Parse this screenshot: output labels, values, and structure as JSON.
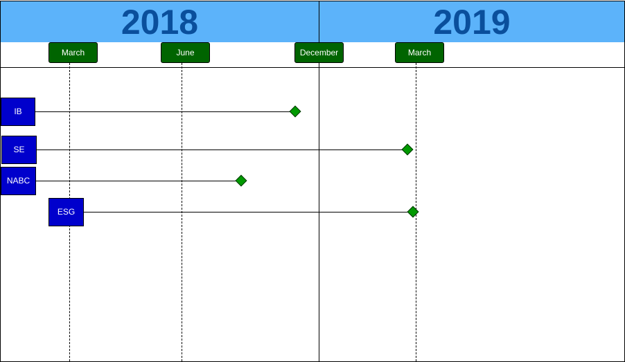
{
  "years": [
    {
      "label": "2018"
    },
    {
      "label": "2019"
    }
  ],
  "months": [
    {
      "label": "March"
    },
    {
      "label": "June"
    },
    {
      "label": "December"
    },
    {
      "label": "March"
    }
  ],
  "tasks": [
    {
      "label": "IB"
    },
    {
      "label": "SE"
    },
    {
      "label": "NABC"
    },
    {
      "label": "ESG"
    }
  ],
  "colors": {
    "year_band": "#5cb3fa",
    "year_text": "#0a4f9c",
    "month_tag": "#006400",
    "task_box": "#0000cc",
    "milestone": "#009900"
  }
}
